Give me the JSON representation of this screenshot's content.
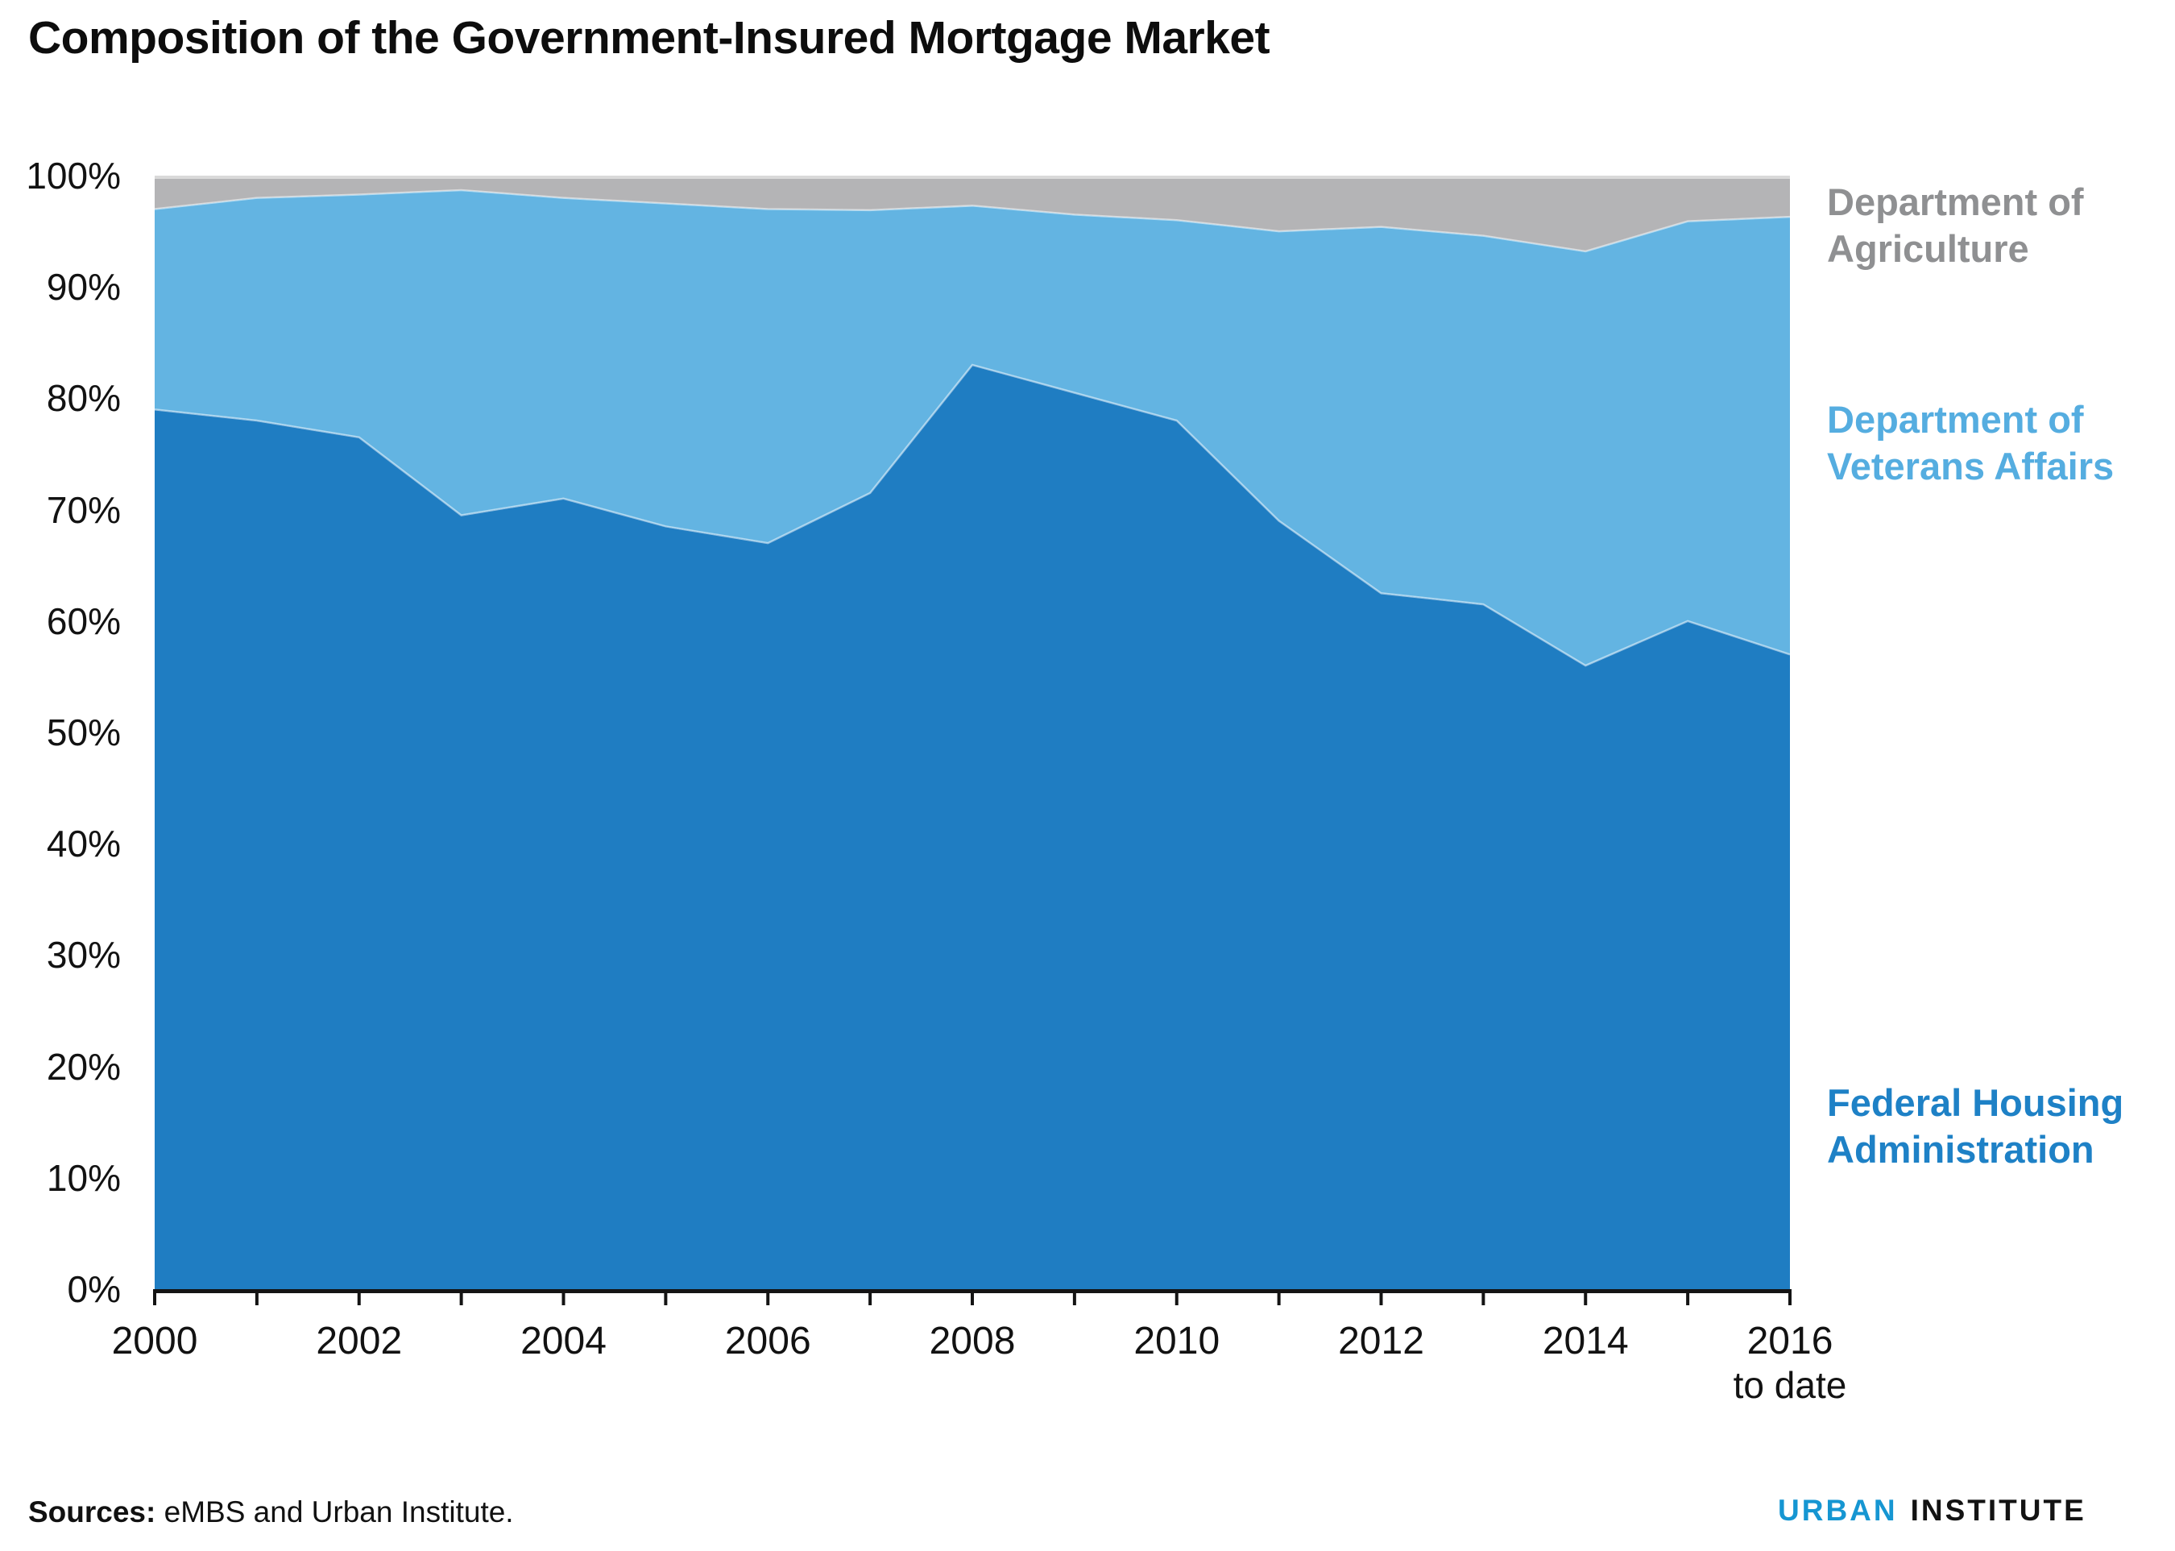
{
  "title": "Composition of the Government-Insured Mortgage Market",
  "source_note": {
    "label": "Sources:",
    "text": " eMBS and Urban Institute."
  },
  "logo": {
    "word1": "URBAN",
    "word2": "INSTITUTE"
  },
  "legend": {
    "usda": {
      "lines": [
        "Department of",
        "Agriculture"
      ],
      "color": "#8f9092"
    },
    "va": {
      "lines": [
        "Department of",
        "Veterans Affairs"
      ],
      "color": "#55ade0"
    },
    "fha": {
      "lines": [
        "Federal Housing",
        "Administration"
      ],
      "color": "#1e81c6"
    }
  },
  "axes": {
    "y_tick_labels": [
      "0%",
      "10%",
      "20%",
      "30%",
      "40%",
      "50%",
      "60%",
      "70%",
      "80%",
      "90%",
      "100%"
    ],
    "x_tick_labels": [
      "2000",
      "2002",
      "2004",
      "2006",
      "2008",
      "2010",
      "2012",
      "2014",
      "2016"
    ],
    "x_last_sublabel": "to date"
  },
  "chart_data": {
    "type": "area",
    "stacked": true,
    "percent_stacked": true,
    "title": "Composition of the Government-Insured Mortgage Market",
    "xlabel": "",
    "ylabel": "",
    "ylim": [
      0,
      100
    ],
    "grid": false,
    "legend_position": "right",
    "x": [
      2000,
      2001,
      2002,
      2003,
      2004,
      2005,
      2006,
      2007,
      2008,
      2009,
      2010,
      2011,
      2012,
      2013,
      2014,
      2015,
      2016
    ],
    "x_last_note": "2016 to date",
    "series": [
      {
        "name": "Federal Housing Administration",
        "color": "#1f7dc2",
        "values": [
          79,
          78,
          76.5,
          69.5,
          71,
          68.5,
          67,
          71.5,
          83,
          80.5,
          78,
          69,
          62.5,
          61.5,
          56,
          60,
          57
        ]
      },
      {
        "name": "Department of Veterans Affairs",
        "color": "#63b4e2",
        "values": [
          18,
          20,
          21.8,
          29.2,
          27,
          29,
          30,
          25.4,
          14.3,
          16,
          18,
          26,
          32.9,
          33.1,
          37.2,
          35.9,
          39.3
        ]
      },
      {
        "name": "Department of Agriculture",
        "color": "#b4b4b6",
        "values": [
          3,
          2,
          1.7,
          1.3,
          2,
          2.5,
          3,
          3.1,
          2.7,
          3.5,
          4,
          5,
          4.6,
          5.4,
          6.8,
          4.1,
          3.7
        ]
      }
    ]
  }
}
